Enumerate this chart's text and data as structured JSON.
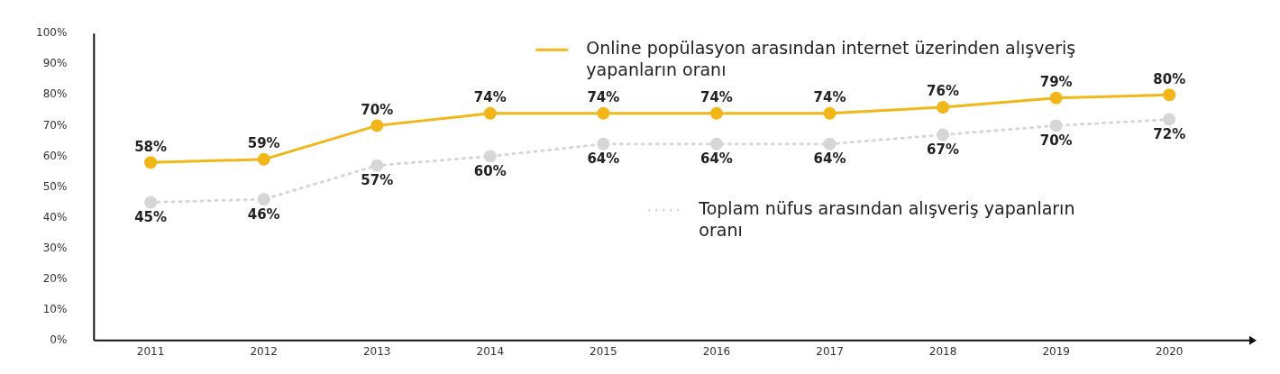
{
  "chart_data": {
    "type": "line",
    "categories": [
      "2011",
      "2012",
      "2013",
      "2014",
      "2015",
      "2016",
      "2017",
      "2018",
      "2019",
      "2020"
    ],
    "series": [
      {
        "name": "Online popülasyon arasından internet üzerinden alışveriş yapanların oranı",
        "color": "#f2b619",
        "line_style": "solid",
        "values": [
          58,
          59,
          70,
          74,
          74,
          74,
          74,
          76,
          79,
          80
        ],
        "value_labels": [
          "58%",
          "59%",
          "70%",
          "74%",
          "74%",
          "74%",
          "74%",
          "76%",
          "79%",
          "80%"
        ]
      },
      {
        "name": "Toplam nüfus arasından alışveriş yapanların oranı",
        "color": "#d6d6d6",
        "line_style": "dotted",
        "values": [
          45,
          46,
          57,
          60,
          64,
          64,
          64,
          67,
          70,
          72
        ],
        "value_labels": [
          "45%",
          "46%",
          "57%",
          "60%",
          "64%",
          "64%",
          "64%",
          "67%",
          "70%",
          "72%"
        ]
      }
    ],
    "ylim": [
      0,
      100
    ],
    "yticks": [
      {
        "value": 0,
        "label": "0%"
      },
      {
        "value": 10,
        "label": "10%"
      },
      {
        "value": 20,
        "label": "20%"
      },
      {
        "value": 30,
        "label": "30%"
      },
      {
        "value": 40,
        "label": "40%"
      },
      {
        "value": 50,
        "label": "50%"
      },
      {
        "value": 60,
        "label": "60%"
      },
      {
        "value": 70,
        "label": "70%"
      },
      {
        "value": 80,
        "label": "80%"
      },
      {
        "value": 90,
        "label": "90%"
      },
      {
        "value": 100,
        "label": "100%"
      }
    ],
    "grid": false,
    "legend": "right",
    "marker": "circle"
  }
}
